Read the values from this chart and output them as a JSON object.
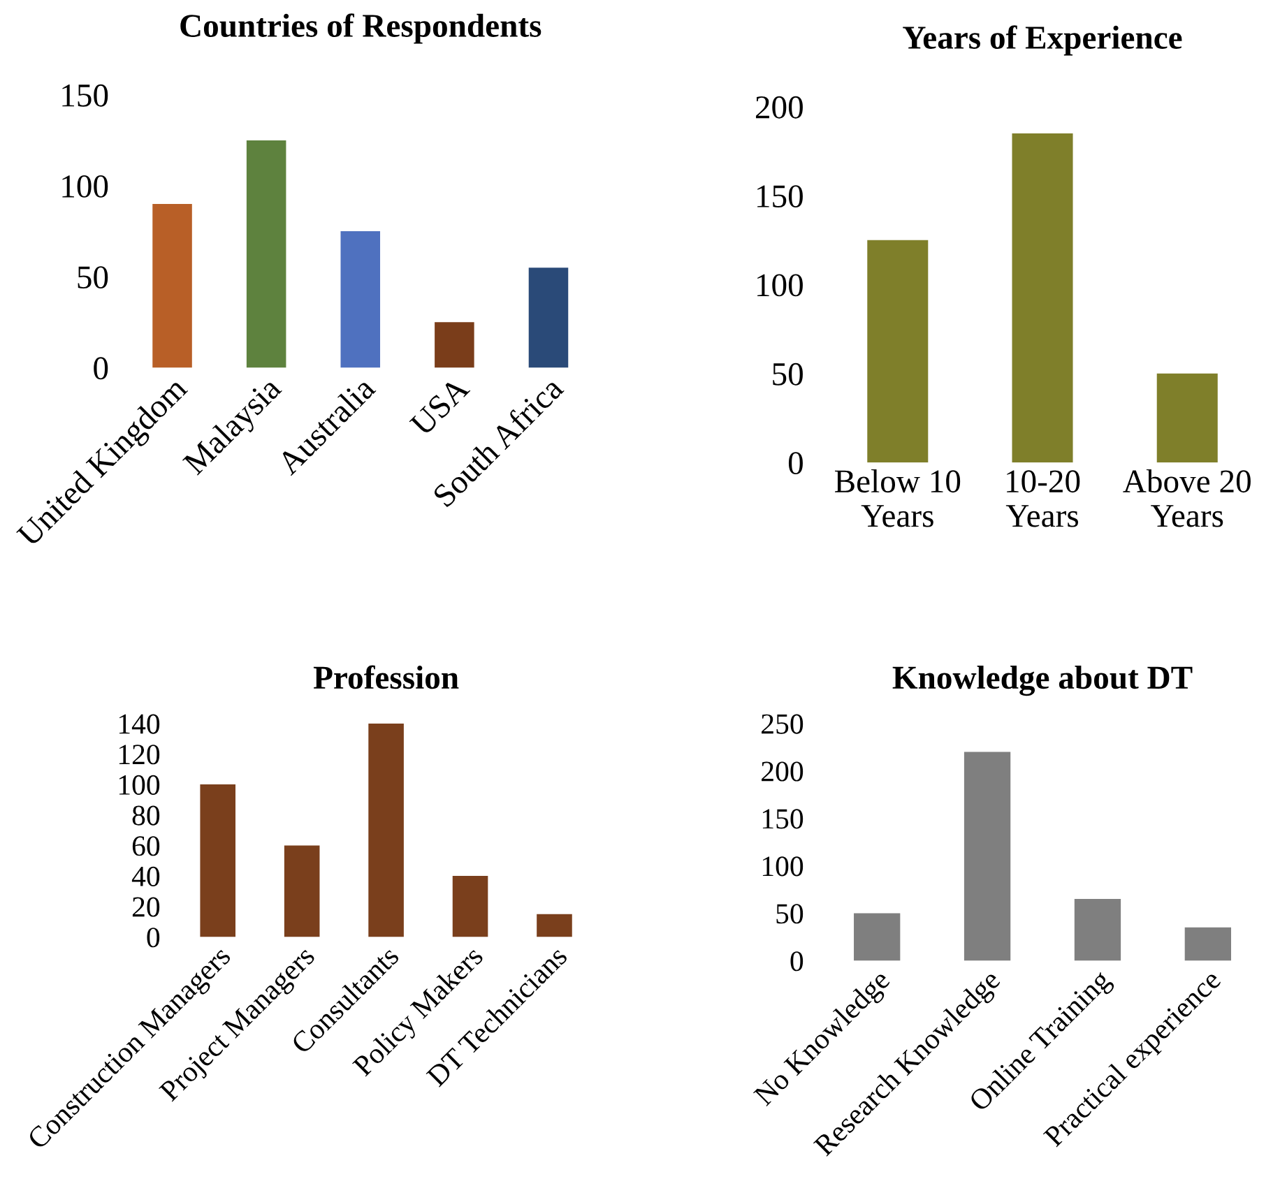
{
  "chart_data": [
    {
      "type": "bar",
      "title": "Countries of Respondents",
      "categories": [
        "United Kingdom",
        "Malaysia",
        "Australia",
        "USA",
        "South Africa"
      ],
      "values": [
        90,
        125,
        75,
        25,
        55
      ],
      "colors": [
        "#b85f27",
        "#5e823e",
        "#4f71bf",
        "#7a3d1a",
        "#2a4a78"
      ],
      "ylim": [
        0,
        150
      ],
      "yticks": [
        0,
        50,
        100,
        150
      ],
      "grid": false
    },
    {
      "type": "bar",
      "title": "Years of Experience",
      "categories": [
        "Below 10\nYears",
        "10-20\nYears",
        "Above 20\nYears"
      ],
      "values": [
        125,
        185,
        50
      ],
      "color": "#7f7f2a",
      "ylim": [
        0,
        200
      ],
      "yticks": [
        0,
        50,
        100,
        150,
        200
      ],
      "grid": false
    },
    {
      "type": "bar",
      "title": "Profession",
      "categories": [
        "Construction Managers",
        "Project Managers",
        "Consultants",
        "Policy Makers",
        "DT Technicians"
      ],
      "values": [
        100,
        60,
        140,
        40,
        15
      ],
      "color": "#7a3f1c",
      "ylim": [
        0,
        140
      ],
      "yticks": [
        0,
        20,
        40,
        60,
        80,
        100,
        120,
        140
      ],
      "grid": false
    },
    {
      "type": "bar",
      "title": "Knowledge about DT",
      "categories": [
        "No Knowledge",
        "Research Knowledge",
        "Online Training",
        "Practical experience"
      ],
      "values": [
        50,
        220,
        65,
        35
      ],
      "color": "#7f7f7f",
      "ylim": [
        0,
        250
      ],
      "yticks": [
        0,
        50,
        100,
        150,
        200,
        250
      ],
      "grid": false
    }
  ]
}
